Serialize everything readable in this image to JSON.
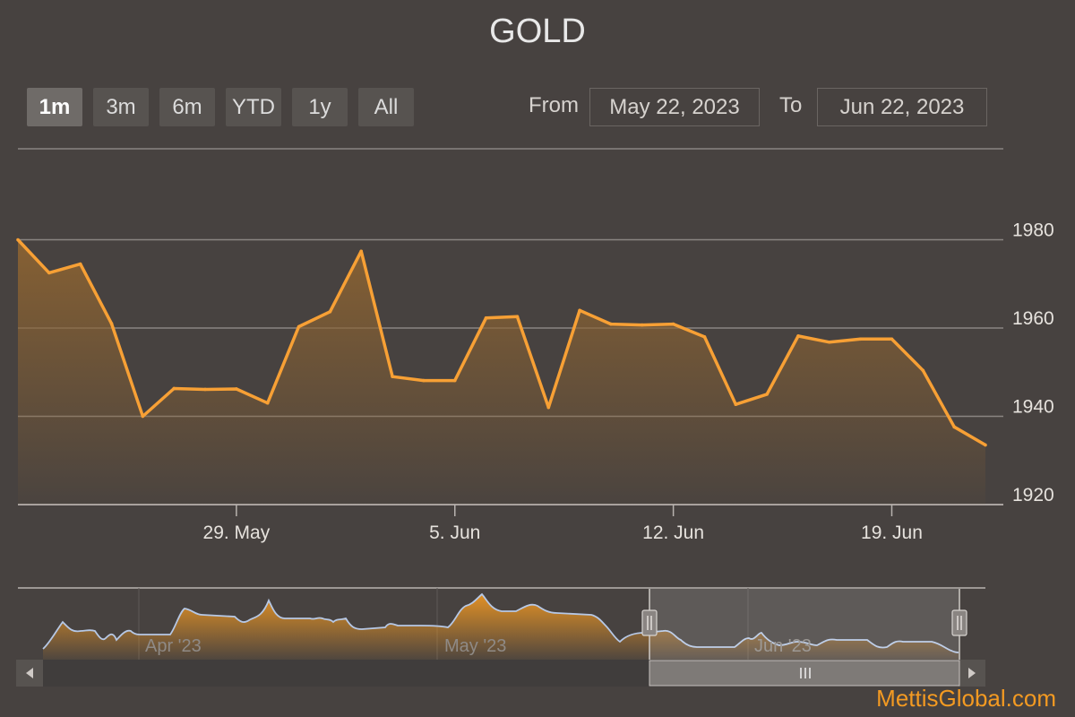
{
  "title": "GOLD",
  "range_selector": {
    "buttons": [
      "1m",
      "3m",
      "6m",
      "YTD",
      "1y",
      "All"
    ],
    "selected": "1m",
    "from_label": "From",
    "to_label": "To",
    "from_value": "May 22, 2023",
    "to_value": "Jun 22, 2023"
  },
  "brand": "MettisGlobal.com",
  "colors": {
    "line": "#f7a035",
    "fill": "#8a6232",
    "background": "#474240",
    "grid": "#8a8582",
    "navigator_line": "#b6c8e6"
  },
  "navigator": {
    "x_labels": [
      "Apr '23",
      "May '23",
      "Jun '23"
    ]
  },
  "chart_data": {
    "type": "area",
    "title": "GOLD",
    "xlabel": "",
    "ylabel": "",
    "ylim": [
      1920,
      2000
    ],
    "yticks": [
      1920,
      1940,
      1960,
      1980
    ],
    "xlim": [
      "2023-05-22",
      "2023-06-22"
    ],
    "xtick_labels": [
      "29. May",
      "5. Jun",
      "12. Jun",
      "19. Jun"
    ],
    "xtick_dates": [
      "2023-05-29",
      "2023-06-05",
      "2023-06-12",
      "2023-06-19"
    ],
    "grid": true,
    "series": [
      {
        "x": [
          "2023-05-22",
          "2023-05-23",
          "2023-05-24",
          "2023-05-25",
          "2023-05-26",
          "2023-05-27",
          "2023-05-28",
          "2023-05-29",
          "2023-05-30",
          "2023-05-31",
          "2023-06-01",
          "2023-06-02",
          "2023-06-03",
          "2023-06-04",
          "2023-06-05",
          "2023-06-06",
          "2023-06-07",
          "2023-06-08",
          "2023-06-09",
          "2023-06-10",
          "2023-06-11",
          "2023-06-12",
          "2023-06-13",
          "2023-06-14",
          "2023-06-15",
          "2023-06-16",
          "2023-06-17",
          "2023-06-18",
          "2023-06-19",
          "2023-06-20",
          "2023-06-21",
          "2023-06-22"
        ],
        "values": [
          1980,
          1972.5,
          1974.5,
          1961,
          1940,
          1946.3,
          1946.1,
          1946.2,
          1943,
          1960.3,
          1963.7,
          1977.4,
          1949,
          1948.1,
          1948.1,
          1962.3,
          1962.6,
          1942,
          1964,
          1960.9,
          1960.7,
          1960.9,
          1958,
          1942.7,
          1945,
          1958.2,
          1956.8,
          1957.5,
          1957.5,
          1950.4,
          1937.6,
          1933.5
        ]
      }
    ]
  }
}
